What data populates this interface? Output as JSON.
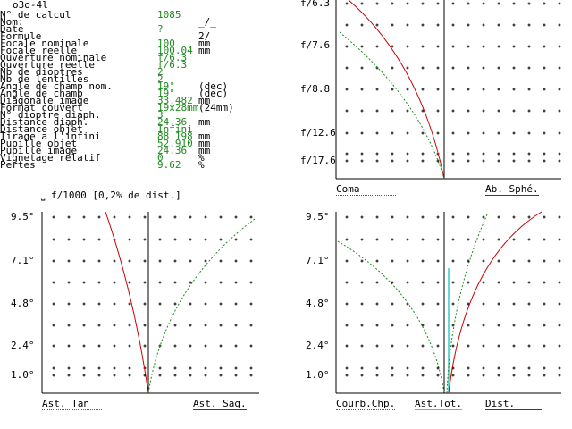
{
  "title": "o3o-4l",
  "info": {
    "labels": [
      "N° de calcul",
      "Nom:",
      "Date",
      "Formule",
      "Focale nominale",
      "Focale reelle",
      "Ouverture nominale",
      "Ouverture reelle",
      "Nb de dioptres",
      "Nb de lentilles",
      "Angle de champ nom.",
      "Angle de champ",
      "Diagonale image",
      "Format couvert",
      "N° dioptre diaph.",
      "Distance diaph.",
      "Distance objet",
      "Tirage a l'infini",
      "Pupille objet",
      "Pupille image",
      "Vignetage relatif",
      "Pertes"
    ],
    "values": [
      "1085",
      "",
      "?",
      "",
      "100",
      "100.04",
      "f/6.3",
      "f/6.3",
      "2",
      "2",
      "19°",
      "19°",
      "33.482",
      "19x28mm",
      "3",
      "24.36",
      "Infini",
      "88.198",
      "52.910",
      "24.36",
      "0",
      "9.62"
    ],
    "units": [
      "",
      "_/_",
      "",
      "2/",
      "mm",
      "mm",
      "",
      "",
      "",
      "",
      "(dec)",
      "(dec)",
      "mm",
      "(24mm)",
      "",
      "mm",
      "",
      "mm",
      "mm",
      "mm",
      "%",
      "%"
    ]
  },
  "coma_panel": {
    "y_labels": [
      "f/6.3",
      "f/7.6",
      "f/8.8",
      "f/12.6",
      "f/17.6"
    ],
    "legend_left": "Coma",
    "legend_right": "Ab. Sphé."
  },
  "tangential_panel": {
    "scale_note": "f/1000 [0,2% de dist.]",
    "y_labels": [
      "9.5°",
      "7.1°",
      "4.8°",
      "2.4°",
      "1.0°"
    ],
    "legend_left": "Ast. Tan",
    "legend_right": "Ast. Sag."
  },
  "field_panel": {
    "y_labels": [
      "9.5°",
      "7.1°",
      "4.8°",
      "2.4°",
      "1.0°"
    ],
    "legend_1": "Courb.Chp.",
    "legend_2": "Ast.Tot.",
    "legend_3": "Dist."
  },
  "colors": {
    "red": "#cc0000",
    "green": "#1d8a1d",
    "cyan": "#33cccc"
  }
}
